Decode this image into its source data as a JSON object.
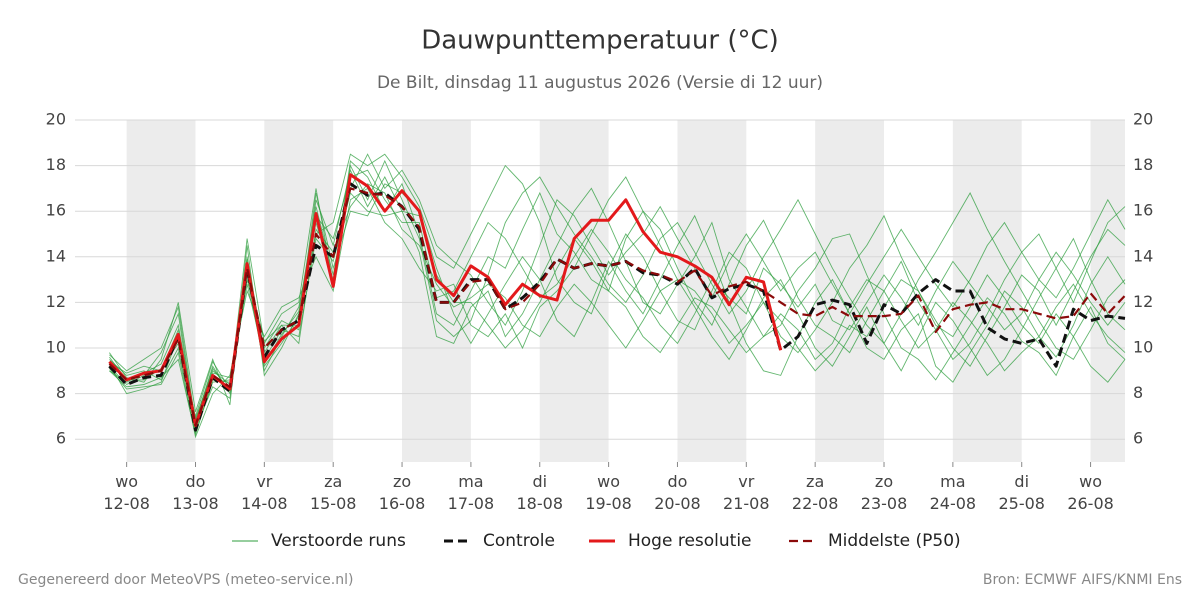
{
  "chart_data": {
    "type": "line",
    "title": "Dauwpunttemperatuur (°C)",
    "subtitle": "De Bilt, dinsdag 11 augustus 2026 (Versie di 12 uur)",
    "footer_left": "Gegenereerd door MeteoVPS (meteo-service.nl)",
    "footer_right": "Bron: ECMWF AIFS/KNMI Ens",
    "x": [
      18,
      24,
      30,
      36,
      42,
      48,
      54,
      60,
      66,
      72,
      78,
      84,
      90,
      96,
      102,
      108,
      114,
      120,
      126,
      132,
      138,
      144,
      150,
      156,
      162,
      168,
      174,
      180,
      186,
      192,
      198,
      204,
      210,
      216,
      222,
      228,
      234,
      240,
      246,
      252,
      258,
      264,
      270,
      276,
      282,
      288,
      294,
      300,
      306,
      312,
      318,
      324,
      330,
      336,
      342,
      348,
      354,
      360,
      366,
      372
    ],
    "xlim": [
      6,
      372
    ],
    "xticks": [
      {
        "value": 24,
        "label": "wo 12-08"
      },
      {
        "value": 48,
        "label": "do 13-08"
      },
      {
        "value": 72,
        "label": "vr 14-08"
      },
      {
        "value": 96,
        "label": "za 15-08"
      },
      {
        "value": 120,
        "label": "zo 16-08"
      },
      {
        "value": 144,
        "label": "ma 17-08"
      },
      {
        "value": 168,
        "label": "di 18-08"
      },
      {
        "value": 192,
        "label": "wo 19-08"
      },
      {
        "value": 216,
        "label": "do 20-08"
      },
      {
        "value": 240,
        "label": "vr 21-08"
      },
      {
        "value": 264,
        "label": "za 22-08"
      },
      {
        "value": 288,
        "label": "zo 23-08"
      },
      {
        "value": 312,
        "label": "ma 24-08"
      },
      {
        "value": 336,
        "label": "di 25-08"
      },
      {
        "value": 360,
        "label": "wo 26-08"
      }
    ],
    "ylim": [
      5,
      20
    ],
    "yticks": [
      6,
      8,
      10,
      12,
      14,
      16,
      18,
      20
    ],
    "grid": true,
    "ensemble": {
      "name": "Verstoorde runs",
      "color": "#2e9e3e",
      "members": [
        [
          9.0,
          8.5,
          8.9,
          9.3,
          11.0,
          6.8,
          9.2,
          8.0,
          13.9,
          9.0,
          10.5,
          11.8,
          15.5,
          13.0,
          18.2,
          17.5,
          16.0,
          17.2,
          15.0,
          11.5,
          11.0,
          12.5,
          14.0,
          13.5,
          15.2,
          16.8,
          15.0,
          14.2,
          13.0,
          12.5,
          14.8,
          16.0,
          15.2,
          13.5,
          12.0,
          11.0,
          12.8,
          14.5,
          15.6,
          14.0,
          12.2,
          11.0,
          10.5,
          9.8,
          11.2,
          12.5,
          13.8,
          12.0,
          10.8,
          9.5,
          10.2,
          11.5,
          13.0,
          14.2,
          15.0,
          13.5,
          12.0,
          13.8,
          15.5,
          16.2
        ],
        [
          9.5,
          8.8,
          9.0,
          8.6,
          10.0,
          6.3,
          8.5,
          8.6,
          13.0,
          10.0,
          11.2,
          10.8,
          16.5,
          14.5,
          17.8,
          16.2,
          17.5,
          16.0,
          14.2,
          10.5,
          10.2,
          11.8,
          12.5,
          10.5,
          11.5,
          13.0,
          14.5,
          16.0,
          17.0,
          15.5,
          13.8,
          12.0,
          11.5,
          12.8,
          14.0,
          15.5,
          13.0,
          11.8,
          10.5,
          11.0,
          12.5,
          13.5,
          14.8,
          15.0,
          13.2,
          11.5,
          10.0,
          9.5,
          8.6,
          9.8,
          11.0,
          12.2,
          11.5,
          10.3,
          9.8,
          8.8,
          10.5,
          11.8,
          10.2,
          9.5
        ],
        [
          9.8,
          8.7,
          8.5,
          9.5,
          12.0,
          7.2,
          9.5,
          7.5,
          14.5,
          8.8,
          10.0,
          11.5,
          15.0,
          15.5,
          18.5,
          18.0,
          18.5,
          17.5,
          16.2,
          14.0,
          13.5,
          15.0,
          16.5,
          18.0,
          17.2,
          15.5,
          13.0,
          12.0,
          11.5,
          13.5,
          15.0,
          14.0,
          12.5,
          11.2,
          10.8,
          12.5,
          14.2,
          13.5,
          12.0,
          10.5,
          9.8,
          10.8,
          12.0,
          13.5,
          14.5,
          15.8,
          14.0,
          12.5,
          11.2,
          10.0,
          9.2,
          10.5,
          11.8,
          13.2,
          12.5,
          11.0,
          12.5,
          14.0,
          15.2,
          14.5
        ],
        [
          9.1,
          8.2,
          8.3,
          8.4,
          9.8,
          6.1,
          8.0,
          8.8,
          12.5,
          10.5,
          11.8,
          12.2,
          14.0,
          12.5,
          16.5,
          17.0,
          15.5,
          14.8,
          13.5,
          12.5,
          12.8,
          11.0,
          10.5,
          11.5,
          10.0,
          11.8,
          12.5,
          13.5,
          15.0,
          16.5,
          17.5,
          16.0,
          14.5,
          13.0,
          11.8,
          10.5,
          9.5,
          10.8,
          12.2,
          13.0,
          11.5,
          10.0,
          9.2,
          10.5,
          11.8,
          10.2,
          9.0,
          10.5,
          12.0,
          11.2,
          10.0,
          8.8,
          9.5,
          10.8,
          12.2,
          13.5,
          14.8,
          13.0,
          11.5,
          10.8
        ],
        [
          9.4,
          8.9,
          9.2,
          9.0,
          10.8,
          6.9,
          9.0,
          8.4,
          14.0,
          9.8,
          11.0,
          11.0,
          16.8,
          13.5,
          16.0,
          15.8,
          17.2,
          16.8,
          16.0,
          13.5,
          11.5,
          10.2,
          11.5,
          12.8,
          14.0,
          13.0,
          11.2,
          10.5,
          12.0,
          13.8,
          12.5,
          11.5,
          13.0,
          14.5,
          15.8,
          14.0,
          12.0,
          10.2,
          9.0,
          8.8,
          10.5,
          12.0,
          13.0,
          11.5,
          10.0,
          9.5,
          10.8,
          11.5,
          9.2,
          8.5,
          9.8,
          11.0,
          12.5,
          11.8,
          10.5,
          9.6,
          11.0,
          12.8,
          14.0,
          12.8
        ],
        [
          9.2,
          8.4,
          8.8,
          9.8,
          11.5,
          6.5,
          8.3,
          7.8,
          13.2,
          9.2,
          10.2,
          11.4,
          15.8,
          14.8,
          17.5,
          17.8,
          16.5,
          15.5,
          15.5,
          12.2,
          12.5,
          14.0,
          15.5,
          14.8,
          13.5,
          12.2,
          12.8,
          14.0,
          15.2,
          14.2,
          13.0,
          12.2,
          11.0,
          10.2,
          11.5,
          13.0,
          12.2,
          11.5,
          13.5,
          12.8,
          11.8,
          12.8,
          11.2,
          10.8,
          12.0,
          13.2,
          12.2,
          11.0,
          12.5,
          13.8,
          12.8,
          11.8,
          10.8,
          11.5,
          13.0,
          14.2,
          13.2,
          12.0,
          11.0,
          12.0
        ],
        [
          9.6,
          8.6,
          8.6,
          9.1,
          10.2,
          7.0,
          9.4,
          8.2,
          14.8,
          10.2,
          11.5,
          12.0,
          17.0,
          12.8,
          18.0,
          16.5,
          18.2,
          16.5,
          14.8,
          11.2,
          10.5,
          11.2,
          13.2,
          15.5,
          16.8,
          17.5,
          16.2,
          15.0,
          14.0,
          12.8,
          12.0,
          13.2,
          14.8,
          15.5,
          14.2,
          12.8,
          11.5,
          12.5,
          14.0,
          15.2,
          16.5,
          15.0,
          13.5,
          12.2,
          11.0,
          10.2,
          11.5,
          13.0,
          14.2,
          15.5,
          16.8,
          15.2,
          13.8,
          12.5,
          11.2,
          10.0,
          9.5,
          10.8,
          12.2,
          13.0
        ],
        [
          9.0,
          8.3,
          8.4,
          8.7,
          9.5,
          6.2,
          8.6,
          8.5,
          12.8,
          9.5,
          10.8,
          10.5,
          14.8,
          13.8,
          16.8,
          16.0,
          15.8,
          16.0,
          15.8,
          13.2,
          12.0,
          12.0,
          11.0,
          10.0,
          10.8,
          12.0,
          13.5,
          14.8,
          13.8,
          12.5,
          11.8,
          10.5,
          9.8,
          11.0,
          12.2,
          11.8,
          10.8,
          9.8,
          10.5,
          11.5,
          10.8,
          9.5,
          10.2,
          11.8,
          13.0,
          12.5,
          11.2,
          10.0,
          10.8,
          12.0,
          11.2,
          10.2,
          9.0,
          9.8,
          10.5,
          11.8,
          12.8,
          11.5,
          10.5,
          9.8
        ],
        [
          9.7,
          9.0,
          9.5,
          10.0,
          11.8,
          6.7,
          9.1,
          8.1,
          13.6,
          9.3,
          10.6,
          11.6,
          16.2,
          13.2,
          17.0,
          18.5,
          17.0,
          17.8,
          16.5,
          14.5,
          13.8,
          13.2,
          12.0,
          11.0,
          12.5,
          14.5,
          16.5,
          15.8,
          14.5,
          13.2,
          14.2,
          15.0,
          16.2,
          14.8,
          13.5,
          12.2,
          13.8,
          15.0,
          13.8,
          12.5,
          13.5,
          14.2,
          12.8,
          11.5,
          12.8,
          14.0,
          15.2,
          14.0,
          12.8,
          11.8,
          13.0,
          14.5,
          15.5,
          14.2,
          13.0,
          12.2,
          13.5,
          15.0,
          16.5,
          15.2
        ],
        [
          9.3,
          8.0,
          8.2,
          8.5,
          10.5,
          6.4,
          8.9,
          8.7,
          13.3,
          10.3,
          11.0,
          10.2,
          15.2,
          14.2,
          16.2,
          17.2,
          16.8,
          15.2,
          14.5,
          12.8,
          11.8,
          12.2,
          12.8,
          12.2,
          11.0,
          10.5,
          11.8,
          12.8,
          12.0,
          11.0,
          10.0,
          11.2,
          12.5,
          13.0,
          12.5,
          11.5,
          10.2,
          11.0,
          12.0,
          11.2,
          10.0,
          9.0,
          9.8,
          11.0,
          10.5,
          11.8,
          13.0,
          12.5,
          11.0,
          10.5,
          11.8,
          13.2,
          12.2,
          11.0,
          10.2,
          11.5,
          10.5,
          9.2,
          8.5,
          9.5
        ]
      ]
    },
    "series": [
      {
        "name": "Controle",
        "color": "#111111",
        "dashed": true,
        "values": [
          9.2,
          8.4,
          8.7,
          8.8,
          10.5,
          6.4,
          8.7,
          8.1,
          13.5,
          9.6,
          10.8,
          11.2,
          14.5,
          14.0,
          17.2,
          16.7,
          16.8,
          16.2,
          15.2,
          12.0,
          12.0,
          13.0,
          13.0,
          11.7,
          12.2,
          12.9,
          13.9,
          13.5,
          13.7,
          13.6,
          13.8,
          13.3,
          13.2,
          12.8,
          13.5,
          12.2,
          12.6,
          12.8,
          12.5,
          9.9,
          10.5,
          11.9,
          12.1,
          11.9,
          10.2,
          11.9,
          11.5,
          12.4,
          13.0,
          12.5,
          12.5,
          10.9,
          10.4,
          10.2,
          10.4,
          9.2,
          11.7,
          11.2,
          11.4,
          11.3
        ]
      },
      {
        "name": "Hoge resolutie",
        "color": "#e3191b",
        "dashed": false,
        "values": [
          9.4,
          8.6,
          8.9,
          9.0,
          10.6,
          6.6,
          8.8,
          8.2,
          13.7,
          9.4,
          10.4,
          11.0,
          15.9,
          12.7,
          17.6,
          17.1,
          16.0,
          16.9,
          16.0,
          13.0,
          12.3,
          13.6,
          13.1,
          11.9,
          12.8,
          12.3,
          12.1,
          14.8,
          15.6,
          15.6,
          16.5,
          15.1,
          14.2,
          14.0,
          13.6,
          13.1,
          11.9,
          13.1,
          12.9,
          9.9,
          null,
          null,
          null,
          null,
          null,
          null,
          null,
          null,
          null,
          null,
          null,
          null,
          null,
          null,
          null,
          null,
          null,
          null,
          null,
          null
        ]
      },
      {
        "name": "Middelste (P50)",
        "color": "#8b0a0a",
        "dashed": true,
        "values": [
          9.3,
          8.6,
          8.8,
          9.0,
          10.4,
          6.6,
          8.8,
          8.3,
          13.5,
          10.0,
          10.8,
          11.2,
          15.0,
          14.0,
          17.0,
          16.8,
          16.7,
          16.2,
          15.3,
          12.0,
          12.0,
          12.9,
          13.0,
          11.7,
          12.0,
          12.8,
          13.9,
          13.5,
          13.7,
          13.6,
          13.8,
          13.4,
          13.2,
          12.9,
          13.4,
          12.3,
          12.7,
          12.9,
          12.5,
          12.0,
          11.5,
          11.4,
          11.8,
          11.4,
          11.4,
          11.4,
          11.5,
          12.3,
          10.7,
          11.7,
          11.9,
          12.0,
          11.7,
          11.7,
          11.5,
          11.3,
          11.4,
          12.4,
          11.5,
          12.3
        ]
      }
    ]
  }
}
